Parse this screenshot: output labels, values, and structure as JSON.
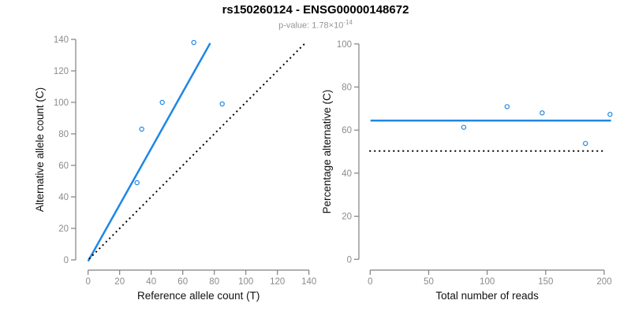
{
  "header": {
    "title": "rs150260124 - ENSG00000148672",
    "pvalue_label": "p-value: 1.78×10",
    "pvalue_exponent": "-14"
  },
  "colors": {
    "accent_blue": "#1E87E5",
    "identity_black": "#000000",
    "axis": "#808080",
    "tick_label": "#8c8c8c",
    "axis_title": "#111111",
    "subtitle": "#969696"
  },
  "chart_data": [
    {
      "type": "scatter",
      "title": "Reference vs alternative allele counts",
      "xlabel": "Reference allele count (T)",
      "ylabel": "Alternative allele count (C)",
      "xlim": [
        0,
        140
      ],
      "ylim": [
        0,
        140
      ],
      "xticks": [
        0,
        20,
        40,
        60,
        80,
        100,
        120,
        140
      ],
      "yticks": [
        0,
        20,
        40,
        60,
        80,
        100,
        120,
        140
      ],
      "grid": false,
      "point_color": "#1E87E5",
      "points": [
        [
          31,
          49
        ],
        [
          34,
          83
        ],
        [
          47,
          100
        ],
        [
          67,
          138
        ],
        [
          85,
          99
        ]
      ],
      "lines": [
        {
          "name": "fit-line",
          "style": "solid",
          "color": "#1E87E5",
          "width": 2.5,
          "from": [
            0,
            -0.8
          ],
          "to": [
            77.4,
            137.6
          ]
        },
        {
          "name": "identity-line",
          "style": "dotted",
          "color": "#000000",
          "width": 2,
          "from": [
            0.6,
            0.6
          ],
          "to": [
            137.8,
            137.8
          ]
        }
      ]
    },
    {
      "type": "scatter",
      "title": "Percentage alternative vs coverage",
      "xlabel": "Total number of reads",
      "ylabel": "Percentage alternative (C)",
      "xlim": [
        0,
        200
      ],
      "ylim": [
        0,
        100
      ],
      "xticks": [
        0,
        50,
        100,
        150,
        200
      ],
      "yticks": [
        0,
        20,
        40,
        60,
        80,
        100
      ],
      "grid": false,
      "point_color": "#1E87E5",
      "points": [
        [
          80,
          61.3
        ],
        [
          117,
          70.9
        ],
        [
          147,
          68.0
        ],
        [
          184,
          53.8
        ],
        [
          205,
          67.3
        ]
      ],
      "lines": [
        {
          "name": "mean-percentage-line",
          "style": "solid",
          "color": "#1E87E5",
          "width": 2.5,
          "from": [
            0.3,
            64.4
          ],
          "to": [
            205.8,
            64.4
          ]
        },
        {
          "name": "null-50pct-line",
          "style": "dotted",
          "color": "#000000",
          "width": 2,
          "from": [
            -0.7,
            50.3
          ],
          "to": [
            200.5,
            50.3
          ]
        }
      ]
    }
  ]
}
